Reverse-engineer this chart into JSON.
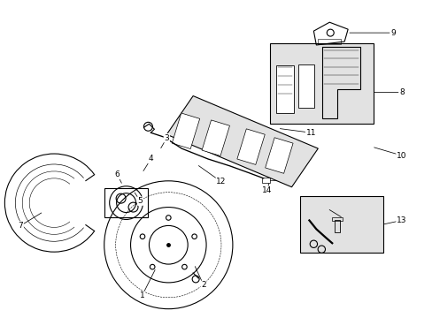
{
  "bg": "#ffffff",
  "lc": "#000000",
  "gray": "#d0d0d0",
  "lgray": "#e2e2e2",
  "fw": 4.89,
  "fh": 3.6,
  "dpi": 100
}
